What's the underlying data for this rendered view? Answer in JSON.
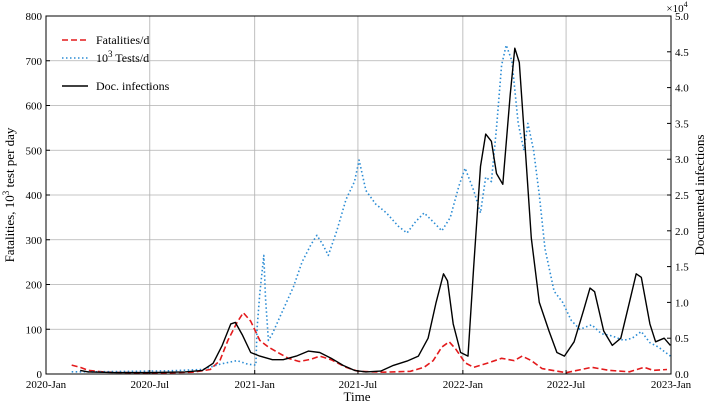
{
  "chart_data": {
    "type": "line",
    "title": "",
    "xlabel": "Time",
    "ylabel_left": "Fatalities, 10^3 test per day",
    "ylabel_right": "Documented infections",
    "right_scale_note": "×10^4",
    "x_range": [
      "2020-01-01",
      "2023-01-01"
    ],
    "ylim_left": [
      0,
      800
    ],
    "ylim_right": [
      0,
      5.0
    ],
    "grid": true,
    "legend_position": "top-left",
    "x_tick_labels": [
      "2020-Jan",
      "2020-Jul",
      "2021-Jan",
      "2021-Jul",
      "2022-Jan",
      "2022-Jul",
      "2023-Jan"
    ],
    "x_tick_dates": [
      "2020-01-01",
      "2020-07-01",
      "2021-01-01",
      "2021-07-01",
      "2022-01-01",
      "2022-07-01",
      "2023-01-01"
    ],
    "y_left_ticks": [
      "0",
      "100",
      "200",
      "300",
      "400",
      "500",
      "600",
      "700",
      "800"
    ],
    "y_right_ticks": [
      "0.0",
      "0.5",
      "1.0",
      "1.5",
      "2.0",
      "2.5",
      "3.0",
      "3.5",
      "4.0",
      "4.5",
      "5.0"
    ],
    "series": [
      {
        "name": "Fatalities/d",
        "axis": "left",
        "color": "#e31a1c",
        "style": "dashed",
        "points": [
          [
            "2020-02-15",
            20
          ],
          [
            "2020-03-01",
            15
          ],
          [
            "2020-03-15",
            8
          ],
          [
            "2020-04-15",
            4
          ],
          [
            "2020-06-01",
            3
          ],
          [
            "2020-08-01",
            3
          ],
          [
            "2020-09-15",
            4
          ],
          [
            "2020-10-15",
            10
          ],
          [
            "2020-11-01",
            30
          ],
          [
            "2020-11-15",
            75
          ],
          [
            "2020-12-01",
            115
          ],
          [
            "2020-12-12",
            137
          ],
          [
            "2020-12-25",
            118
          ],
          [
            "2021-01-10",
            75
          ],
          [
            "2021-01-25",
            60
          ],
          [
            "2021-02-15",
            45
          ],
          [
            "2021-03-01",
            35
          ],
          [
            "2021-03-20",
            28
          ],
          [
            "2021-04-10",
            33
          ],
          [
            "2021-04-25",
            40
          ],
          [
            "2021-05-15",
            32
          ],
          [
            "2021-06-10",
            15
          ],
          [
            "2021-07-01",
            6
          ],
          [
            "2021-08-15",
            4
          ],
          [
            "2021-10-01",
            6
          ],
          [
            "2021-10-25",
            15
          ],
          [
            "2021-11-10",
            30
          ],
          [
            "2021-11-25",
            60
          ],
          [
            "2021-12-08",
            72
          ],
          [
            "2021-12-20",
            55
          ],
          [
            "2022-01-05",
            25
          ],
          [
            "2022-01-20",
            15
          ],
          [
            "2022-02-15",
            25
          ],
          [
            "2022-03-10",
            35
          ],
          [
            "2022-04-01",
            30
          ],
          [
            "2022-04-15",
            40
          ],
          [
            "2022-05-01",
            30
          ],
          [
            "2022-05-20",
            12
          ],
          [
            "2022-07-01",
            3
          ],
          [
            "2022-08-15",
            15
          ],
          [
            "2022-09-15",
            8
          ],
          [
            "2022-10-20",
            5
          ],
          [
            "2022-11-15",
            15
          ],
          [
            "2022-12-01",
            8
          ],
          [
            "2022-12-25",
            10
          ]
        ]
      },
      {
        "name": "10^3 Tests/d",
        "axis": "left",
        "color": "#2b8cd4",
        "style": "dotted",
        "points": [
          [
            "2020-02-15",
            5
          ],
          [
            "2020-04-01",
            5
          ],
          [
            "2020-06-01",
            6
          ],
          [
            "2020-08-01",
            7
          ],
          [
            "2020-10-01",
            10
          ],
          [
            "2020-11-01",
            22
          ],
          [
            "2020-12-01",
            30
          ],
          [
            "2020-12-20",
            22
          ],
          [
            "2021-01-03",
            20
          ],
          [
            "2021-01-05",
            100
          ],
          [
            "2021-01-10",
            180
          ],
          [
            "2021-01-17",
            265
          ],
          [
            "2021-01-20",
            170
          ],
          [
            "2021-01-25",
            75
          ],
          [
            "2021-02-01",
            90
          ],
          [
            "2021-02-15",
            130
          ],
          [
            "2021-03-10",
            195
          ],
          [
            "2021-03-25",
            250
          ],
          [
            "2021-04-10",
            290
          ],
          [
            "2021-04-20",
            310
          ],
          [
            "2021-04-30",
            290
          ],
          [
            "2021-05-10",
            265
          ],
          [
            "2021-05-25",
            320
          ],
          [
            "2021-06-10",
            390
          ],
          [
            "2021-06-25",
            430
          ],
          [
            "2021-07-03",
            478
          ],
          [
            "2021-07-15",
            410
          ],
          [
            "2021-08-01",
            380
          ],
          [
            "2021-08-20",
            360
          ],
          [
            "2021-09-10",
            330
          ],
          [
            "2021-09-25",
            315
          ],
          [
            "2021-10-10",
            340
          ],
          [
            "2021-10-25",
            360
          ],
          [
            "2021-11-10",
            340
          ],
          [
            "2021-11-25",
            320
          ],
          [
            "2021-12-10",
            350
          ],
          [
            "2021-12-25",
            420
          ],
          [
            "2022-01-05",
            460
          ],
          [
            "2022-01-20",
            410
          ],
          [
            "2022-02-01",
            360
          ],
          [
            "2022-02-10",
            440
          ],
          [
            "2022-02-20",
            430
          ],
          [
            "2022-03-01",
            550
          ],
          [
            "2022-03-10",
            690
          ],
          [
            "2022-03-18",
            735
          ],
          [
            "2022-03-28",
            700
          ],
          [
            "2022-04-08",
            560
          ],
          [
            "2022-04-18",
            500
          ],
          [
            "2022-04-25",
            560
          ],
          [
            "2022-05-05",
            500
          ],
          [
            "2022-05-15",
            400
          ],
          [
            "2022-05-25",
            280
          ],
          [
            "2022-06-10",
            185
          ],
          [
            "2022-06-25",
            160
          ],
          [
            "2022-07-10",
            120
          ],
          [
            "2022-07-25",
            100
          ],
          [
            "2022-08-15",
            110
          ],
          [
            "2022-09-01",
            90
          ],
          [
            "2022-09-20",
            85
          ],
          [
            "2022-10-10",
            75
          ],
          [
            "2022-10-25",
            80
          ],
          [
            "2022-11-10",
            95
          ],
          [
            "2022-11-25",
            70
          ],
          [
            "2022-12-10",
            60
          ],
          [
            "2022-12-31",
            40
          ]
        ]
      },
      {
        "name": "Doc. infections",
        "axis": "right",
        "color": "#000000",
        "style": "solid",
        "points": [
          [
            "2020-03-01",
            0.05
          ],
          [
            "2020-03-15",
            0.03
          ],
          [
            "2020-05-01",
            0.02
          ],
          [
            "2020-07-01",
            0.02
          ],
          [
            "2020-09-01",
            0.03
          ],
          [
            "2020-10-01",
            0.05
          ],
          [
            "2020-10-20",
            0.15
          ],
          [
            "2020-11-05",
            0.4
          ],
          [
            "2020-11-20",
            0.7
          ],
          [
            "2020-11-28",
            0.72
          ],
          [
            "2020-12-10",
            0.55
          ],
          [
            "2020-12-25",
            0.3
          ],
          [
            "2021-01-10",
            0.25
          ],
          [
            "2021-02-01",
            0.2
          ],
          [
            "2021-02-20",
            0.2
          ],
          [
            "2021-03-15",
            0.25
          ],
          [
            "2021-04-05",
            0.32
          ],
          [
            "2021-04-25",
            0.3
          ],
          [
            "2021-05-15",
            0.22
          ],
          [
            "2021-06-05",
            0.12
          ],
          [
            "2021-06-25",
            0.05
          ],
          [
            "2021-07-15",
            0.03
          ],
          [
            "2021-08-10",
            0.04
          ],
          [
            "2021-09-01",
            0.12
          ],
          [
            "2021-09-25",
            0.18
          ],
          [
            "2021-10-15",
            0.25
          ],
          [
            "2021-11-01",
            0.5
          ],
          [
            "2021-11-15",
            1.0
          ],
          [
            "2021-11-28",
            1.4
          ],
          [
            "2021-12-05",
            1.3
          ],
          [
            "2021-12-15",
            0.7
          ],
          [
            "2021-12-28",
            0.3
          ],
          [
            "2022-01-10",
            0.25
          ],
          [
            "2022-01-20",
            1.5
          ],
          [
            "2022-02-01",
            2.9
          ],
          [
            "2022-02-10",
            3.35
          ],
          [
            "2022-02-20",
            3.25
          ],
          [
            "2022-03-01",
            2.8
          ],
          [
            "2022-03-12",
            2.65
          ],
          [
            "2022-03-25",
            3.9
          ],
          [
            "2022-04-02",
            4.55
          ],
          [
            "2022-04-10",
            4.35
          ],
          [
            "2022-04-20",
            3.2
          ],
          [
            "2022-05-01",
            1.9
          ],
          [
            "2022-05-15",
            1.0
          ],
          [
            "2022-06-01",
            0.6
          ],
          [
            "2022-06-15",
            0.3
          ],
          [
            "2022-06-28",
            0.25
          ],
          [
            "2022-07-15",
            0.45
          ],
          [
            "2022-08-01",
            0.9
          ],
          [
            "2022-08-12",
            1.2
          ],
          [
            "2022-08-20",
            1.15
          ],
          [
            "2022-09-05",
            0.6
          ],
          [
            "2022-09-20",
            0.4
          ],
          [
            "2022-10-05",
            0.5
          ],
          [
            "2022-10-20",
            1.0
          ],
          [
            "2022-11-01",
            1.4
          ],
          [
            "2022-11-10",
            1.35
          ],
          [
            "2022-11-25",
            0.7
          ],
          [
            "2022-12-05",
            0.45
          ],
          [
            "2022-12-20",
            0.5
          ],
          [
            "2022-12-31",
            0.4
          ]
        ]
      }
    ]
  }
}
